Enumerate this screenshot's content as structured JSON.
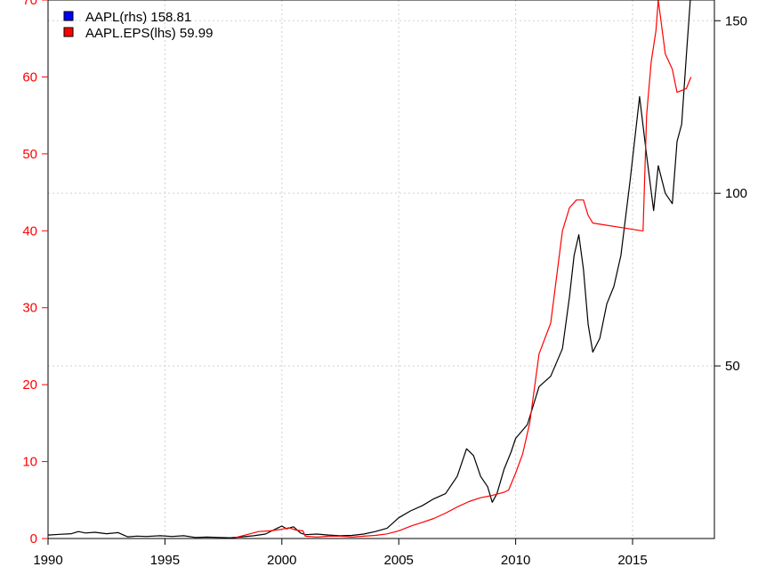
{
  "chart_data": {
    "type": "line",
    "title": "",
    "xlabel": "",
    "x_axis": {
      "ticks": [
        1990,
        1995,
        2000,
        2005,
        2010,
        2015
      ],
      "tick_labels": [
        "1990",
        "1995",
        "2000",
        "2005",
        "2010",
        "2015"
      ],
      "range": [
        1990,
        2018.5
      ]
    },
    "y_left": {
      "side": "left",
      "color": "#ff0000",
      "range": [
        0,
        70
      ],
      "ticks": [
        0,
        10,
        20,
        30,
        40,
        50,
        60,
        70
      ],
      "tick_labels": [
        "0",
        "10",
        "20",
        "30",
        "40",
        "50",
        "60",
        "70"
      ]
    },
    "y_right": {
      "side": "right",
      "color": "#000000",
      "range": [
        0,
        156
      ],
      "ticks": [
        50,
        100,
        150
      ],
      "tick_labels": [
        "50",
        "100",
        "150"
      ]
    },
    "grid": true,
    "legend_position": "top-left",
    "series": [
      {
        "name": "AAPL(rhs)",
        "legend_label": "AAPL(rhs) 158.81",
        "axis": "right",
        "color": "#000000",
        "legend_swatch_color": "#0000ff",
        "last_value": 158.81,
        "x": [
          1990,
          1990.5,
          1991,
          1991.3,
          1991.6,
          1992,
          1992.5,
          1993,
          1993.4,
          1993.8,
          1994.2,
          1994.8,
          1995.3,
          1995.8,
          1996.3,
          1996.8,
          1997.3,
          1997.8,
          1998.3,
          1998.8,
          1999.3,
          1999.8,
          2000.0,
          2000.2,
          2000.5,
          2000.8,
          2001.0,
          2001.5,
          2002.0,
          2002.5,
          2003.0,
          2003.5,
          2004.0,
          2004.5,
          2005.0,
          2005.5,
          2006.0,
          2006.5,
          2007.0,
          2007.5,
          2007.9,
          2008.2,
          2008.5,
          2008.8,
          2009.0,
          2009.2,
          2009.5,
          2009.8,
          2010.0,
          2010.5,
          2011.0,
          2011.5,
          2012.0,
          2012.3,
          2012.5,
          2012.7,
          2012.9,
          2013.1,
          2013.3,
          2013.6,
          2013.9,
          2014.2,
          2014.5,
          2014.9,
          2015.0,
          2015.3,
          2015.6,
          2015.9,
          2016.1,
          2016.4,
          2016.7,
          2016.9,
          2017.1,
          2017.3,
          2017.5
        ],
        "values": [
          1.0,
          1.2,
          1.4,
          2.0,
          1.6,
          1.8,
          1.4,
          1.7,
          0.5,
          0.7,
          0.6,
          0.8,
          0.6,
          0.8,
          0.3,
          0.4,
          0.3,
          0.2,
          0.5,
          0.8,
          1.3,
          3.0,
          3.6,
          2.8,
          3.4,
          1.6,
          1.1,
          1.3,
          1.0,
          0.8,
          0.9,
          1.3,
          2.0,
          3.0,
          6.0,
          8.0,
          9.5,
          11.5,
          13.0,
          18.0,
          26.0,
          24.0,
          18.0,
          15.0,
          10.5,
          13.0,
          20.0,
          25.0,
          29.0,
          33.0,
          44.0,
          47.0,
          55.0,
          70.0,
          82.0,
          88.0,
          78.0,
          62.0,
          54.0,
          58.0,
          68.0,
          73.0,
          82.0,
          104.0,
          110.0,
          128.0,
          111.0,
          95.0,
          108.0,
          100.0,
          97.0,
          115.0,
          120.0,
          140.0,
          158.81
        ]
      },
      {
        "name": "AAPL.EPS(lhs)",
        "legend_label": "AAPL.EPS(lhs)  59.99",
        "axis": "left",
        "color": "#ff0000",
        "legend_swatch_color": "#ff0000",
        "last_value": 59.99,
        "x": [
          1998.0,
          1998.5,
          1999.0,
          1999.5,
          2000.0,
          2000.3,
          2000.6,
          2000.9,
          2001.0,
          2001.5,
          2002.0,
          2002.5,
          2003.0,
          2003.5,
          2004.0,
          2004.5,
          2005.0,
          2005.5,
          2006.0,
          2006.5,
          2007.0,
          2007.5,
          2008.0,
          2008.5,
          2009.0,
          2009.5,
          2009.7,
          2010.0,
          2010.3,
          2010.6,
          2011.0,
          2011.5,
          2012.0,
          2012.3,
          2012.6,
          2012.9,
          2013.1,
          2013.3,
          2015.4,
          2015.45,
          2015.6,
          2015.8,
          2016.0,
          2016.1,
          2016.4,
          2016.7,
          2016.9,
          2017.3,
          2017.5
        ],
        "values": [
          0.1,
          0.5,
          0.9,
          1.0,
          1.2,
          1.4,
          1.1,
          1.0,
          0.3,
          0.2,
          0.3,
          0.3,
          0.2,
          0.3,
          0.4,
          0.6,
          1.0,
          1.6,
          2.1,
          2.6,
          3.3,
          4.1,
          4.8,
          5.3,
          5.6,
          6.0,
          6.3,
          8.5,
          11.0,
          15.0,
          24.0,
          28.0,
          40.0,
          43.0,
          44.0,
          44.0,
          42.0,
          41.0,
          40.0,
          40.0,
          55.0,
          62.0,
          66.0,
          70.0,
          63.0,
          61.0,
          58.0,
          58.5,
          59.99
        ]
      }
    ]
  }
}
